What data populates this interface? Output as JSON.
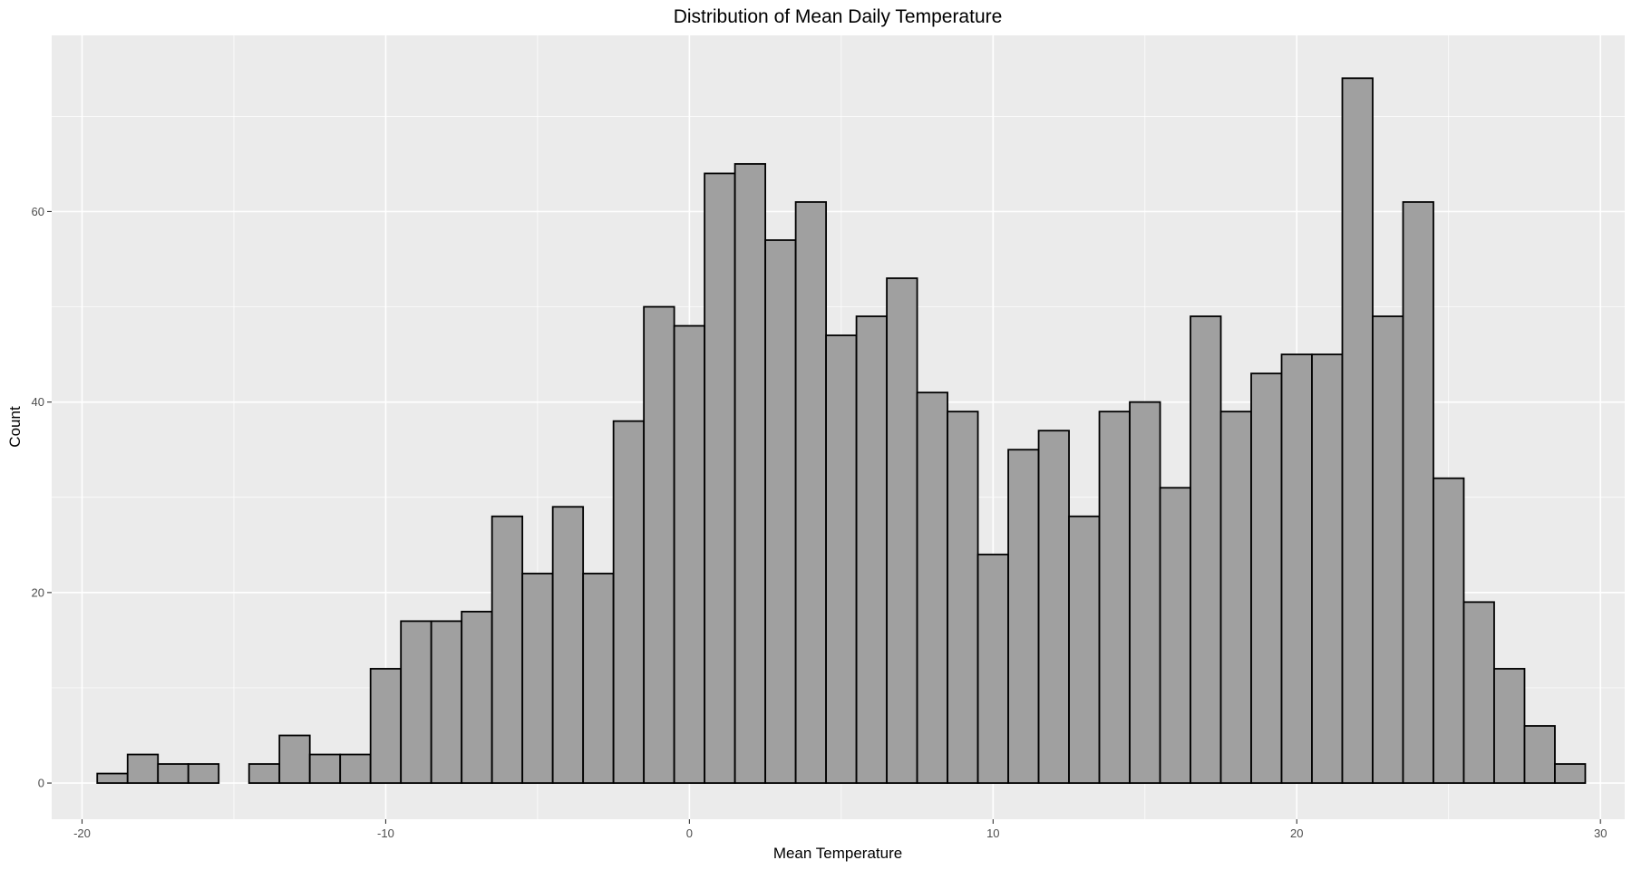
{
  "chart_data": {
    "type": "bar",
    "subtype": "histogram",
    "title": "Distribution of Mean Daily Temperature",
    "xlabel": "Mean Temperature",
    "ylabel": "Count",
    "xlim": [
      -21.0,
      30.8
    ],
    "ylim": [
      -3.8,
      78.5
    ],
    "bin_width": 1.0,
    "bin_start": -19.5,
    "bin_end": 29.5,
    "x_ticks": [
      -20,
      -10,
      0,
      10,
      20,
      30
    ],
    "x_tick_labels": [
      "-20",
      "-10",
      "0",
      "10",
      "20",
      "30"
    ],
    "y_ticks": [
      0,
      20,
      40,
      60
    ],
    "y_tick_labels": [
      "0",
      "20",
      "40",
      "60"
    ],
    "values": [
      1,
      3,
      2,
      2,
      0,
      2,
      5,
      3,
      3,
      12,
      17,
      17,
      18,
      28,
      22,
      29,
      22,
      38,
      50,
      48,
      64,
      65,
      57,
      61,
      47,
      49,
      53,
      41,
      39,
      24,
      35,
      37,
      28,
      39,
      40,
      31,
      49,
      39,
      43,
      45,
      45,
      74,
      49,
      61,
      32,
      19,
      12,
      6,
      2
    ],
    "grid": true,
    "legend": "none",
    "colors": {
      "panel_background": "#ebebeb",
      "grid_major": "#ffffff",
      "bar_fill": "#a0a0a0",
      "bar_stroke": "#000000"
    }
  }
}
